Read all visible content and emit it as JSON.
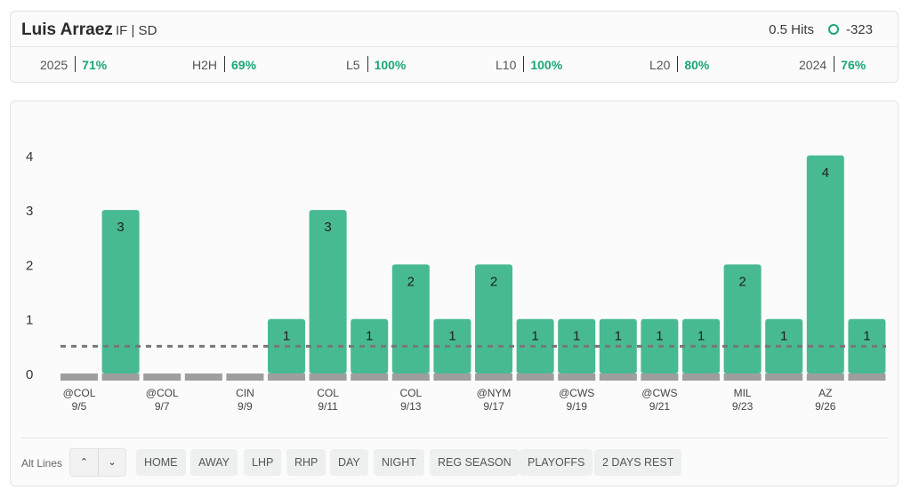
{
  "player": {
    "name": "Luis Arraez",
    "meta": "IF | SD"
  },
  "prop": {
    "line": "0.5 Hits",
    "odds": "-323"
  },
  "stats": [
    {
      "label": "2025",
      "value": "71%"
    },
    {
      "label": "H2H",
      "value": "69%"
    },
    {
      "label": "L5",
      "value": "100%"
    },
    {
      "label": "L10",
      "value": "100%"
    },
    {
      "label": "L20",
      "value": "80%"
    },
    {
      "label": "2024",
      "value": "76%"
    }
  ],
  "colors": {
    "bar": "#48ba91",
    "accent": "#1ba676",
    "base": "#9e9e9e",
    "line": "#777777"
  },
  "chart_data": {
    "type": "bar",
    "values": [
      0,
      3,
      0,
      0,
      0,
      1,
      3,
      1,
      2,
      1,
      2,
      1,
      1,
      1,
      1,
      1,
      2,
      1,
      4,
      1
    ],
    "categories": [
      "@COL",
      "",
      "@COL",
      "",
      "CIN",
      "",
      "COL",
      "",
      "COL",
      "",
      "@NYM",
      "",
      "@CWS",
      "",
      "@CWS",
      "",
      "MIL",
      "",
      "AZ",
      ""
    ],
    "dates": [
      "9/5",
      "",
      "9/7",
      "",
      "9/9",
      "",
      "9/11",
      "",
      "9/13",
      "",
      "9/17",
      "",
      "9/19",
      "",
      "9/21",
      "",
      "9/23",
      "",
      "9/26",
      ""
    ],
    "yticks": [
      0,
      1,
      2,
      3,
      4
    ],
    "ylim": [
      0,
      4
    ],
    "threshold": 0.5
  },
  "alt_lines": {
    "label": "Alt Lines",
    "up_icon": "chevron-up-icon",
    "down_icon": "chevron-down-icon"
  },
  "filters": [
    "HOME",
    "AWAY",
    "LHP",
    "RHP",
    "DAY",
    "NIGHT",
    "REG SEASON",
    "PLAYOFFS",
    "2 DAYS REST"
  ]
}
